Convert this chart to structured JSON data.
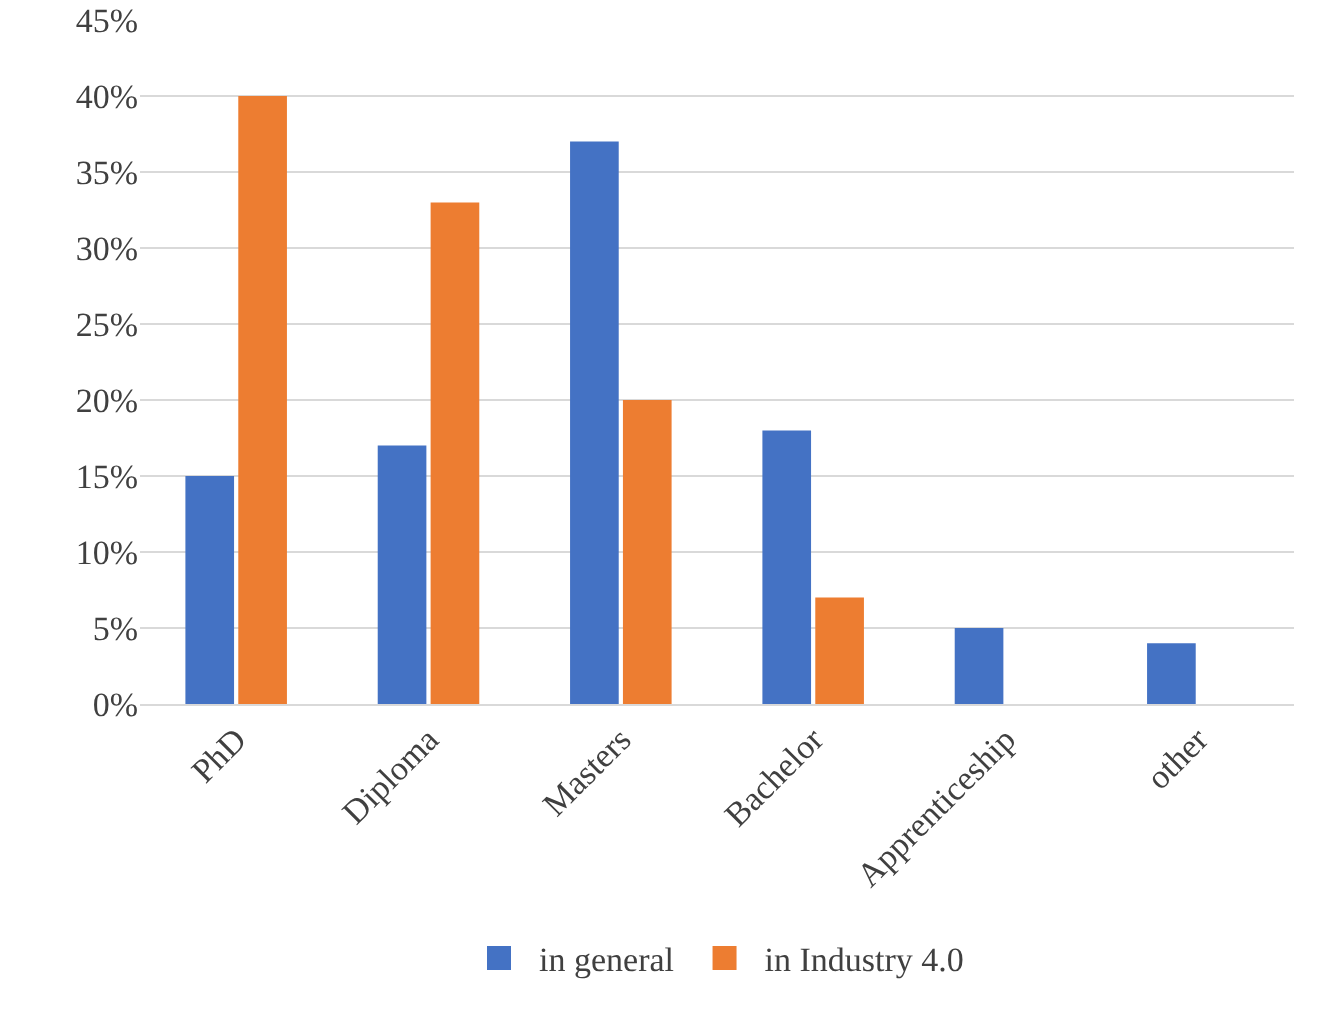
{
  "chart_data": {
    "type": "bar",
    "categories": [
      "PhD",
      "Diploma",
      "Masters",
      "Bachelor",
      "Apprenticeship",
      "other"
    ],
    "series": [
      {
        "name": "in general",
        "color": "#4472c4",
        "values": [
          15,
          17,
          37,
          18,
          5,
          4
        ]
      },
      {
        "name": "in Industry 4.0",
        "color": "#ed7d31",
        "values": [
          40,
          33,
          20,
          7,
          0,
          0
        ]
      }
    ],
    "ylim": [
      0,
      45
    ],
    "yticks": [
      {
        "value": 0,
        "label": "0%"
      },
      {
        "value": 5,
        "label": "5%"
      },
      {
        "value": 10,
        "label": "10%"
      },
      {
        "value": 15,
        "label": "15%"
      },
      {
        "value": 20,
        "label": "20%"
      },
      {
        "value": 25,
        "label": "25%"
      },
      {
        "value": 30,
        "label": "30%"
      },
      {
        "value": 35,
        "label": "35%"
      },
      {
        "value": 40,
        "label": "40%"
      },
      {
        "value": 45,
        "label": "45%"
      }
    ],
    "grid": "y",
    "legend": "bottom"
  }
}
